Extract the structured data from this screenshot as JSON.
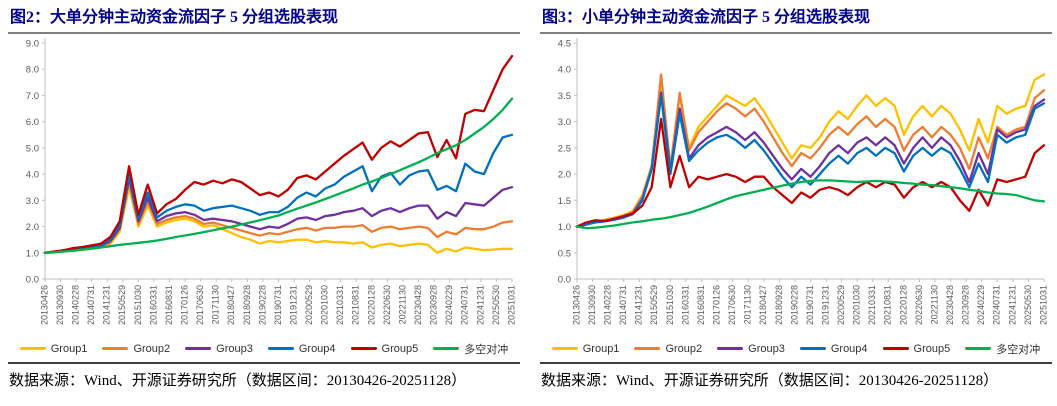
{
  "page": {
    "background": "#ffffff",
    "title_color": "#00008B",
    "source_notes": [
      "数据来源：Wind、开源证券研究所（数据区间：20130426-20251128）",
      "数据来源：Wind、开源证券研究所（数据区间：20130426-20251128）"
    ]
  },
  "chart_data": [
    {
      "type": "line",
      "title": "图2：大单分钟主动资金流因子 5 分组选股表现",
      "xlabel": "",
      "ylabel": "",
      "ylim": [
        0,
        9
      ],
      "ytick_step": 1.0,
      "grid": false,
      "legend_position": "bottom",
      "axis_color": "#BFBFBF",
      "tick_label_color": "#595959",
      "x_tick_labels": [
        "20130426",
        "20130930",
        "20140228",
        "20140731",
        "20141231",
        "20150529",
        "20151030",
        "20160331",
        "20160831",
        "20170126",
        "20170630",
        "20171130",
        "20180427",
        "20180928",
        "20190228",
        "20190731",
        "20191231",
        "20200529",
        "20201030",
        "20210331",
        "20210831",
        "20220128",
        "20220630",
        "20221130",
        "20230428",
        "20230928",
        "20240229",
        "20240731",
        "20241231",
        "20250530",
        "20251031"
      ],
      "series": [
        {
          "name": "Group1",
          "color": "#FFC000",
          "values": [
            1.0,
            1.02,
            1.05,
            1.08,
            1.11,
            1.15,
            1.2,
            1.35,
            1.8,
            3.5,
            2.0,
            2.8,
            2.0,
            2.15,
            2.25,
            2.3,
            2.2,
            2.0,
            2.05,
            1.9,
            1.75,
            1.6,
            1.5,
            1.35,
            1.45,
            1.4,
            1.45,
            1.5,
            1.5,
            1.4,
            1.45,
            1.4,
            1.4,
            1.35,
            1.4,
            1.2,
            1.3,
            1.35,
            1.25,
            1.3,
            1.35,
            1.3,
            1.0,
            1.15,
            1.05,
            1.2,
            1.15,
            1.1,
            1.12,
            1.15,
            1.15
          ]
        },
        {
          "name": "Group2",
          "color": "#ED7D31",
          "values": [
            1.0,
            1.03,
            1.06,
            1.1,
            1.14,
            1.18,
            1.24,
            1.4,
            1.9,
            3.7,
            2.1,
            2.95,
            2.1,
            2.25,
            2.35,
            2.4,
            2.3,
            2.1,
            2.15,
            2.05,
            1.95,
            1.85,
            1.75,
            1.65,
            1.75,
            1.7,
            1.8,
            1.9,
            1.95,
            1.85,
            1.95,
            1.95,
            2.0,
            2.0,
            2.05,
            1.8,
            1.95,
            2.0,
            1.9,
            1.95,
            2.0,
            1.95,
            1.6,
            1.8,
            1.7,
            1.95,
            1.9,
            1.9,
            2.0,
            2.15,
            2.2
          ]
        },
        {
          "name": "Group3",
          "color": "#7030A0",
          "values": [
            1.0,
            1.03,
            1.07,
            1.12,
            1.16,
            1.21,
            1.27,
            1.45,
            1.95,
            3.85,
            2.2,
            3.1,
            2.2,
            2.4,
            2.5,
            2.55,
            2.45,
            2.25,
            2.3,
            2.25,
            2.2,
            2.1,
            2.0,
            1.9,
            2.0,
            1.95,
            2.1,
            2.3,
            2.35,
            2.25,
            2.4,
            2.45,
            2.55,
            2.6,
            2.7,
            2.4,
            2.6,
            2.7,
            2.55,
            2.7,
            2.8,
            2.8,
            2.3,
            2.55,
            2.4,
            2.9,
            2.85,
            2.8,
            3.1,
            3.4,
            3.5
          ]
        },
        {
          "name": "Group4",
          "color": "#0070C0",
          "values": [
            1.0,
            1.04,
            1.08,
            1.14,
            1.18,
            1.24,
            1.3,
            1.5,
            2.05,
            4.0,
            2.3,
            3.3,
            2.35,
            2.6,
            2.75,
            2.85,
            2.8,
            2.6,
            2.7,
            2.75,
            2.8,
            2.7,
            2.6,
            2.45,
            2.55,
            2.55,
            2.75,
            3.1,
            3.3,
            3.15,
            3.45,
            3.6,
            3.9,
            4.1,
            4.3,
            3.35,
            3.9,
            4.05,
            3.6,
            3.95,
            4.1,
            4.15,
            3.4,
            3.55,
            3.35,
            4.4,
            4.1,
            4.0,
            4.8,
            5.4,
            5.5
          ]
        },
        {
          "name": "Group5",
          "color": "#C00000",
          "values": [
            1.0,
            1.05,
            1.1,
            1.18,
            1.22,
            1.28,
            1.35,
            1.6,
            2.2,
            4.3,
            2.45,
            3.6,
            2.5,
            2.85,
            3.05,
            3.4,
            3.7,
            3.6,
            3.75,
            3.65,
            3.8,
            3.7,
            3.45,
            3.2,
            3.3,
            3.15,
            3.4,
            3.85,
            3.95,
            3.8,
            4.1,
            4.4,
            4.7,
            4.95,
            5.2,
            4.55,
            5.0,
            5.25,
            5.05,
            5.3,
            5.55,
            5.6,
            4.65,
            5.3,
            4.6,
            6.3,
            6.45,
            6.4,
            7.2,
            8.0,
            8.5
          ]
        },
        {
          "name": "多空对冲",
          "color": "#00B050",
          "values": [
            1.0,
            1.02,
            1.05,
            1.08,
            1.12,
            1.16,
            1.2,
            1.25,
            1.3,
            1.34,
            1.38,
            1.42,
            1.47,
            1.53,
            1.6,
            1.66,
            1.72,
            1.79,
            1.86,
            1.93,
            2.0,
            2.08,
            2.16,
            2.24,
            2.33,
            2.42,
            2.55,
            2.68,
            2.8,
            2.92,
            3.05,
            3.18,
            3.32,
            3.45,
            3.6,
            3.72,
            3.85,
            4.0,
            4.15,
            4.3,
            4.45,
            4.62,
            4.8,
            4.95,
            5.1,
            5.3,
            5.55,
            5.8,
            6.1,
            6.45,
            6.88
          ]
        }
      ]
    },
    {
      "type": "line",
      "title": "图3：小单分钟主动资金流因子 5 分组选股表现",
      "xlabel": "",
      "ylabel": "",
      "ylim": [
        0,
        4.5
      ],
      "ytick_step": 0.5,
      "grid": false,
      "legend_position": "bottom",
      "axis_color": "#BFBFBF",
      "tick_label_color": "#595959",
      "x_tick_labels": [
        "20130426",
        "20130930",
        "20140228",
        "20140731",
        "20141231",
        "20150529",
        "20151030",
        "20160331",
        "20160831",
        "20170126",
        "20170630",
        "20171130",
        "20180427",
        "20180928",
        "20190228",
        "20190731",
        "20191231",
        "20200529",
        "20201030",
        "20210331",
        "20210831",
        "20220128",
        "20220630",
        "20221130",
        "20230428",
        "20230928",
        "20240229",
        "20240731",
        "20241231",
        "20250530",
        "20251031"
      ],
      "series": [
        {
          "name": "Group1",
          "color": "#FFC000",
          "values": [
            1.0,
            1.05,
            1.1,
            1.13,
            1.17,
            1.22,
            1.3,
            1.6,
            2.15,
            3.75,
            2.15,
            3.5,
            2.5,
            2.9,
            3.1,
            3.3,
            3.5,
            3.4,
            3.3,
            3.45,
            3.2,
            2.9,
            2.6,
            2.3,
            2.55,
            2.5,
            2.7,
            3.0,
            3.2,
            3.05,
            3.3,
            3.5,
            3.3,
            3.45,
            3.3,
            2.75,
            3.1,
            3.3,
            3.1,
            3.3,
            3.15,
            2.85,
            2.45,
            3.05,
            2.6,
            3.3,
            3.15,
            3.25,
            3.3,
            3.8,
            3.9
          ]
        },
        {
          "name": "Group2",
          "color": "#ED7D31",
          "values": [
            1.0,
            1.05,
            1.1,
            1.12,
            1.16,
            1.2,
            1.28,
            1.58,
            2.15,
            3.9,
            2.1,
            3.55,
            2.45,
            2.8,
            3.0,
            3.2,
            3.35,
            3.25,
            3.1,
            3.25,
            3.0,
            2.7,
            2.4,
            2.15,
            2.4,
            2.3,
            2.5,
            2.75,
            2.9,
            2.75,
            2.95,
            3.1,
            2.9,
            3.05,
            2.9,
            2.45,
            2.75,
            2.9,
            2.7,
            2.9,
            2.75,
            2.5,
            2.1,
            2.7,
            2.3,
            2.9,
            2.75,
            2.85,
            2.9,
            3.45,
            3.6
          ]
        },
        {
          "name": "Group3",
          "color": "#7030A0",
          "values": [
            1.0,
            1.04,
            1.09,
            1.11,
            1.14,
            1.18,
            1.25,
            1.52,
            2.1,
            3.55,
            2.05,
            3.25,
            2.3,
            2.55,
            2.7,
            2.8,
            2.9,
            2.8,
            2.65,
            2.8,
            2.6,
            2.35,
            2.1,
            1.9,
            2.1,
            1.95,
            2.15,
            2.4,
            2.55,
            2.4,
            2.6,
            2.7,
            2.55,
            2.7,
            2.55,
            2.2,
            2.5,
            2.7,
            2.5,
            2.7,
            2.55,
            2.25,
            1.85,
            2.4,
            2.0,
            2.85,
            2.7,
            2.8,
            2.85,
            3.3,
            3.42
          ]
        },
        {
          "name": "Group4",
          "color": "#0070C0",
          "values": [
            1.0,
            1.04,
            1.08,
            1.1,
            1.13,
            1.17,
            1.24,
            1.5,
            2.1,
            3.5,
            2.0,
            3.15,
            2.25,
            2.45,
            2.6,
            2.7,
            2.75,
            2.65,
            2.5,
            2.65,
            2.45,
            2.2,
            1.95,
            1.75,
            1.95,
            1.8,
            2.0,
            2.2,
            2.35,
            2.2,
            2.4,
            2.5,
            2.35,
            2.5,
            2.4,
            2.05,
            2.35,
            2.5,
            2.35,
            2.5,
            2.4,
            2.1,
            1.75,
            2.2,
            1.85,
            2.75,
            2.6,
            2.7,
            2.75,
            3.25,
            3.35
          ]
        },
        {
          "name": "Group5",
          "color": "#C00000",
          "values": [
            1.0,
            1.08,
            1.12,
            1.1,
            1.15,
            1.2,
            1.25,
            1.4,
            1.75,
            3.05,
            1.75,
            2.35,
            1.75,
            1.95,
            1.9,
            1.95,
            2.0,
            1.95,
            1.85,
            1.95,
            1.95,
            1.75,
            1.6,
            1.45,
            1.65,
            1.55,
            1.7,
            1.75,
            1.7,
            1.6,
            1.75,
            1.85,
            1.75,
            1.85,
            1.8,
            1.55,
            1.75,
            1.85,
            1.75,
            1.85,
            1.75,
            1.5,
            1.3,
            1.7,
            1.4,
            1.9,
            1.85,
            1.9,
            1.95,
            2.4,
            2.55
          ]
        },
        {
          "name": "多空对冲",
          "color": "#00B050",
          "values": [
            1.0,
            0.97,
            0.98,
            1.0,
            1.02,
            1.05,
            1.08,
            1.1,
            1.13,
            1.15,
            1.18,
            1.22,
            1.26,
            1.32,
            1.38,
            1.45,
            1.52,
            1.58,
            1.62,
            1.66,
            1.7,
            1.74,
            1.78,
            1.82,
            1.85,
            1.87,
            1.88,
            1.88,
            1.87,
            1.86,
            1.85,
            1.86,
            1.87,
            1.86,
            1.85,
            1.83,
            1.82,
            1.8,
            1.79,
            1.77,
            1.75,
            1.73,
            1.7,
            1.68,
            1.65,
            1.63,
            1.62,
            1.6,
            1.55,
            1.5,
            1.48
          ]
        }
      ]
    }
  ]
}
